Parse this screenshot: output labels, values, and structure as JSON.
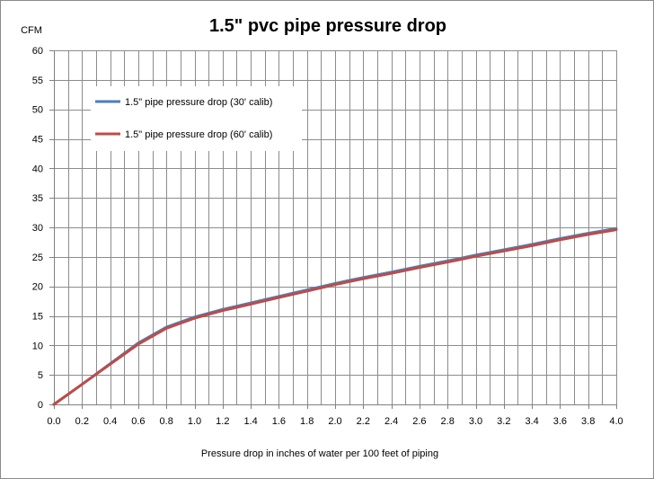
{
  "chart_data": {
    "type": "line",
    "title": "1.5\" pvc pipe pressure drop",
    "xlabel": "Pressure drop in inches of water per 100 feet of piping",
    "ylabel": "CFM",
    "xlim": [
      0,
      4.0
    ],
    "ylim": [
      0,
      60
    ],
    "x_ticks": [
      "0.0",
      "0.2",
      "0.4",
      "0.6",
      "0.8",
      "1.0",
      "1.2",
      "1.4",
      "1.6",
      "1.8",
      "2.0",
      "2.2",
      "2.4",
      "2.6",
      "2.8",
      "3.0",
      "3.2",
      "3.4",
      "3.6",
      "3.8",
      "4.0"
    ],
    "y_ticks": [
      "0",
      "5",
      "10",
      "15",
      "20",
      "25",
      "30",
      "35",
      "40",
      "45",
      "50",
      "55",
      "60"
    ],
    "x_minor_step": 0.1,
    "grid": true,
    "legend_position": "top-left",
    "series": [
      {
        "name": "1.5\" pipe pressure drop (30' calib)",
        "color": "#4a7ebb",
        "x": [
          0.0,
          0.2,
          0.4,
          0.6,
          0.8,
          1.0,
          1.2,
          1.4,
          1.6,
          1.8,
          2.0,
          2.2,
          2.4,
          2.6,
          2.8,
          3.0,
          3.2,
          3.4,
          3.6,
          3.8,
          4.0
        ],
        "y": [
          0.0,
          3.4,
          6.9,
          10.4,
          13.1,
          14.8,
          16.1,
          17.2,
          18.3,
          19.4,
          20.5,
          21.5,
          22.4,
          23.4,
          24.3,
          25.3,
          26.2,
          27.1,
          28.1,
          29.0,
          29.8
        ]
      },
      {
        "name": "1.5\" pipe pressure drop (60' calib)",
        "color": "#be4b48",
        "x": [
          0.0,
          0.2,
          0.4,
          0.6,
          0.8,
          1.0,
          1.2,
          1.4,
          1.6,
          1.8,
          2.0,
          2.2,
          2.4,
          2.6,
          2.8,
          3.0,
          3.2,
          3.4,
          3.6,
          3.8,
          4.0
        ],
        "y": [
          0.0,
          3.4,
          6.8,
          10.2,
          12.9,
          14.6,
          15.9,
          17.0,
          18.1,
          19.2,
          20.3,
          21.3,
          22.2,
          23.2,
          24.1,
          25.1,
          26.0,
          26.9,
          27.9,
          28.8,
          29.6
        ]
      }
    ]
  }
}
